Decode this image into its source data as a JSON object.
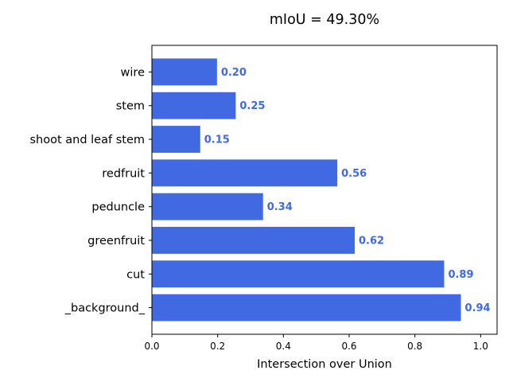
{
  "chart_data": {
    "type": "bar",
    "orientation": "horizontal",
    "title": "mIoU = 49.30%",
    "xlabel": "Intersection over Union",
    "ylabel": "",
    "xlim": [
      0.0,
      1.05
    ],
    "xticks": [
      0.0,
      0.2,
      0.4,
      0.6,
      0.8,
      1.0
    ],
    "xtick_labels": [
      "0.0",
      "0.2",
      "0.4",
      "0.6",
      "0.8",
      "1.0"
    ],
    "categories": [
      "wire",
      "stem",
      "shoot and leaf stem",
      "redfruit",
      "peduncle",
      "greenfruit",
      "cut",
      "_background_"
    ],
    "values": [
      0.198,
      0.255,
      0.147,
      0.564,
      0.338,
      0.617,
      0.889,
      0.94
    ],
    "value_labels": [
      "0.20",
      "0.25",
      "0.15",
      "0.56",
      "0.34",
      "0.62",
      "0.89",
      "0.94"
    ],
    "bar_color": "#4169e1",
    "label_color": "#4169e1",
    "grid": false,
    "legend": "none"
  }
}
